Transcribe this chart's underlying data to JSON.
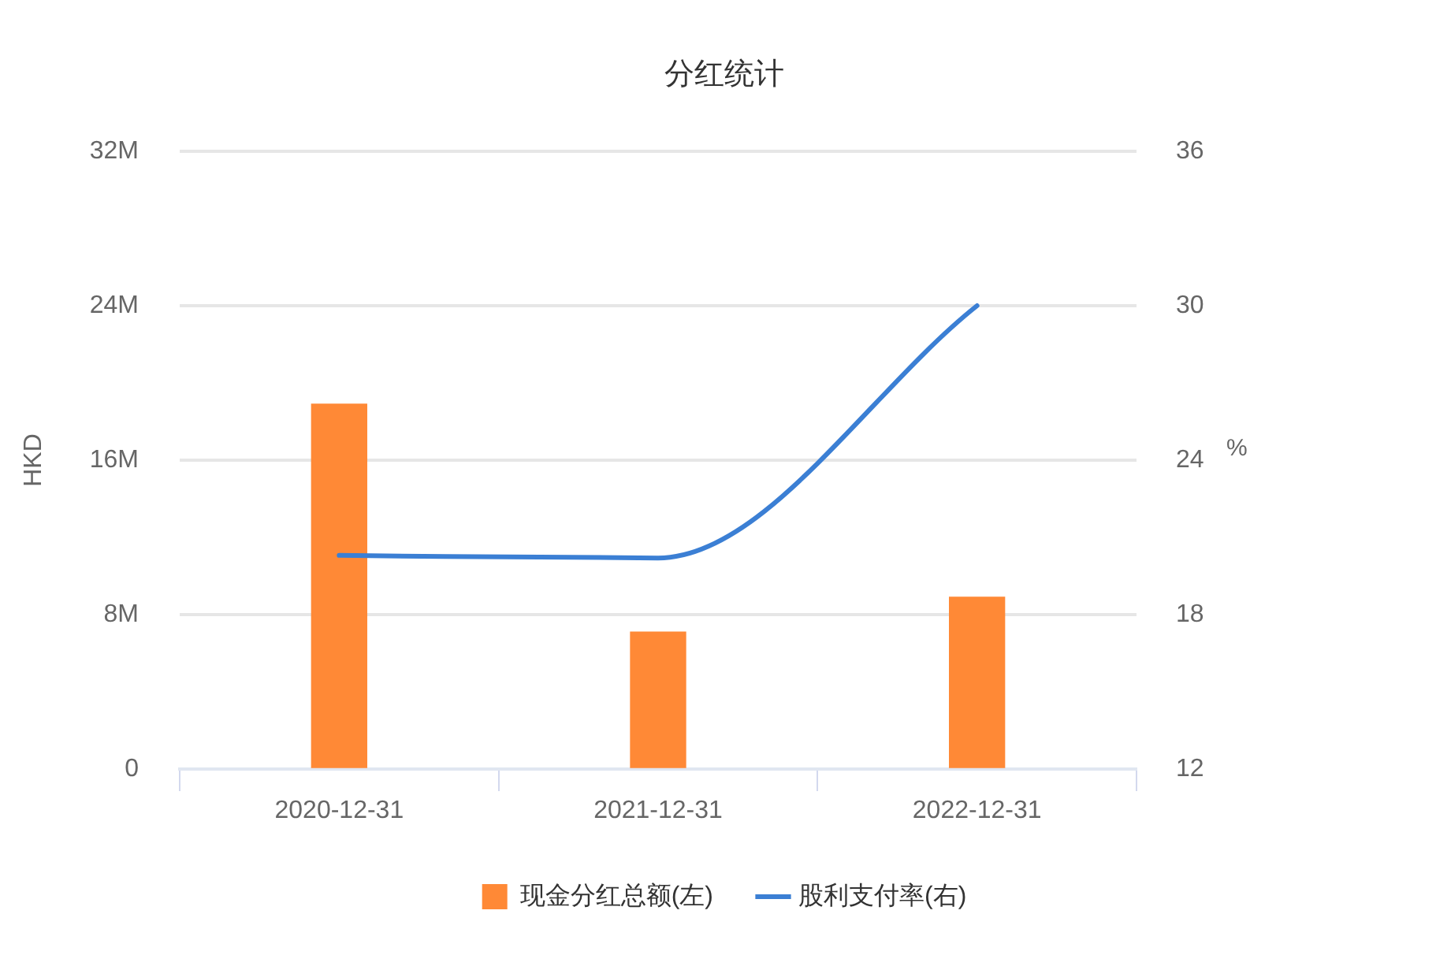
{
  "chart_data": {
    "type": "bar",
    "title": "分红统计",
    "ylabel": "HKD",
    "y2label": "%",
    "categories": [
      "2020-12-31",
      "2021-12-31",
      "2022-12-31"
    ],
    "series": [
      {
        "name": "现金分红总额(左)",
        "color": "#ff8936",
        "values": [
          18900000,
          7100000,
          8900000
        ]
      },
      {
        "name": "股利支付率(右)",
        "type": "line",
        "axis": "y2",
        "color": "#3b7fd4",
        "values": [
          20.3,
          20.2,
          30.0
        ]
      }
    ],
    "ylim": [
      0,
      32000000
    ],
    "yticks": [
      0,
      {
        "value": 8000000,
        "label": "8M"
      },
      {
        "value": 16000000,
        "label": "16M"
      },
      {
        "value": 24000000,
        "label": "24M"
      },
      {
        "value": 32000000,
        "label": "32M"
      }
    ],
    "y2lim": [
      12,
      36
    ],
    "y2ticks": [
      12,
      18,
      24,
      30,
      36
    ],
    "grid": "y",
    "legend": "bottom",
    "marker": "none"
  }
}
